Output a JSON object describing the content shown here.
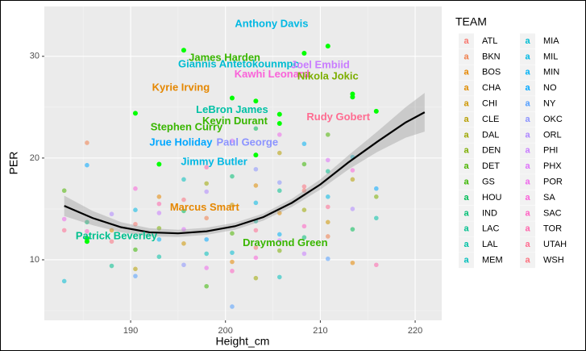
{
  "chart_data": {
    "type": "scatter",
    "x_label": "Height_cm",
    "y_label": "PER",
    "legend_title": "TEAM",
    "key_glyph": "a",
    "xlim": [
      180.9,
      222.8
    ],
    "ylim": [
      4.05,
      34.9
    ],
    "xticks": [
      190,
      200,
      210,
      220
    ],
    "yticks": [
      10,
      20,
      30
    ],
    "xticks_minor": [
      185,
      195,
      205,
      215
    ],
    "yticks_minor": [
      5,
      15,
      25
    ],
    "grid": true,
    "series": [
      {
        "name": "ATL",
        "color": "#F8766D",
        "x": [
          190.5,
          203.2,
          208.3
        ],
        "values": [
          13.5,
          11.2,
          16.8
        ]
      },
      {
        "name": "BKN",
        "color": "#F07E4A",
        "x": [
          185.4,
          198,
          210.8
        ],
        "values": [
          21.5,
          14.1,
          12.3
        ]
      },
      {
        "name": "BOS",
        "color": "#E58700",
        "x": [
          193,
          200.7,
          213.4
        ],
        "values": [
          16.2,
          9.8,
          9.7
        ]
      },
      {
        "name": "CHA",
        "color": "#DE8C00",
        "x": [
          188,
          203.2,
          205.7
        ],
        "values": [
          12.9,
          17.3,
          14.6
        ]
      },
      {
        "name": "CHI",
        "color": "#CD9600",
        "x": [
          195.6,
          200.7,
          210.8
        ],
        "values": [
          11.6,
          15.4,
          13.7
        ]
      },
      {
        "name": "CLE",
        "color": "#B79F00",
        "x": [
          190.5,
          205.7,
          213.4
        ],
        "values": [
          9.1,
          20.5,
          17.9
        ]
      },
      {
        "name": "DAL",
        "color": "#9DA700",
        "x": [
          198,
          203.2,
          208.3
        ],
        "values": [
          17.5,
          8.2,
          14.9
        ]
      },
      {
        "name": "DEN",
        "color": "#7CAE00",
        "x": [
          193,
          205.7,
          215.9
        ],
        "values": [
          13.1,
          10.9,
          16.2
        ]
      },
      {
        "name": "DET",
        "color": "#4CB400",
        "x": [
          183,
          200.7,
          210.8
        ],
        "values": [
          16.8,
          12.6,
          22.3
        ]
      },
      {
        "name": "GS",
        "color": "#39B600",
        "x": [
          190.5,
          198,
          208.3
        ],
        "values": [
          11.0,
          7.4,
          19.4
        ]
      },
      {
        "name": "HOU",
        "color": "#00BC56",
        "x": [
          195.6,
          203.2,
          213.4
        ],
        "values": [
          14.8,
          22.9,
          13.0
        ]
      },
      {
        "name": "IND",
        "color": "#00BF74",
        "x": [
          185.4,
          200.7,
          208.3
        ],
        "values": [
          13.7,
          18.2,
          12.2
        ]
      },
      {
        "name": "LAC",
        "color": "#00C08E",
        "x": [
          188,
          205.7,
          210.8
        ],
        "values": [
          9.4,
          16.8,
          18.7
        ]
      },
      {
        "name": "LAL",
        "color": "#00C1A5",
        "x": [
          193,
          203.2,
          215.9
        ],
        "values": [
          10.3,
          13.8,
          14.1
        ]
      },
      {
        "name": "MEM",
        "color": "#00BFBB",
        "x": [
          195.6,
          198,
          205.7
        ],
        "values": [
          17.9,
          10.6,
          8.3
        ]
      },
      {
        "name": "MIA",
        "color": "#00BCD1",
        "x": [
          183,
          200.7,
          213.4
        ],
        "values": [
          7.9,
          10.7,
          20.1
        ]
      },
      {
        "name": "MIL",
        "color": "#00B8E3",
        "x": [
          190.5,
          203.2,
          210.8
        ],
        "values": [
          14.9,
          15.6,
          16.2
        ]
      },
      {
        "name": "MIN",
        "color": "#00B1F4",
        "x": [
          193,
          205.7,
          208.3
        ],
        "values": [
          12.0,
          12.5,
          21.4
        ]
      },
      {
        "name": "NO",
        "color": "#00A7FF",
        "x": [
          185.4,
          198,
          215.9
        ],
        "values": [
          19.3,
          12.0,
          17.0
        ]
      },
      {
        "name": "NY",
        "color": "#529EFF",
        "x": [
          190.5,
          200.7,
          210.8
        ],
        "values": [
          8.4,
          5.4,
          10.1
        ]
      },
      {
        "name": "OKC",
        "color": "#8B93FF",
        "x": [
          195.6,
          203.2,
          205.7
        ],
        "values": [
          9.5,
          18.9,
          17.6
        ]
      },
      {
        "name": "ORL",
        "color": "#AE87FF",
        "x": [
          188,
          198,
          213.4
        ],
        "values": [
          14.5,
          16.7,
          15.0
        ]
      },
      {
        "name": "PHI",
        "color": "#C97CFF",
        "x": [
          193,
          205.7,
          208.3
        ],
        "values": [
          14.6,
          11.9,
          10.6
        ]
      },
      {
        "name": "PHX",
        "color": "#DE71F9",
        "x": [
          195.6,
          200.7,
          210.8
        ],
        "values": [
          13.0,
          21.7,
          19.8
        ]
      },
      {
        "name": "POR",
        "color": "#EE67EB",
        "x": [
          183,
          198,
          205.7
        ],
        "values": [
          14.0,
          9.2,
          22.3
        ]
      },
      {
        "name": "SA",
        "color": "#FA62D9",
        "x": [
          190.5,
          203.2,
          213.4
        ],
        "values": [
          17.0,
          10.2,
          18.8
        ]
      },
      {
        "name": "SAC",
        "color": "#FF61C3",
        "x": [
          185.4,
          200.7,
          208.3
        ],
        "values": [
          12.8,
          8.9,
          13.3
        ]
      },
      {
        "name": "TOR",
        "color": "#FF64AB",
        "x": [
          193,
          198,
          215.9
        ],
        "values": [
          15.5,
          19.1,
          9.5
        ]
      },
      {
        "name": "UTAH",
        "color": "#FF6C91",
        "x": [
          183,
          203.2,
          210.8
        ],
        "values": [
          12.9,
          12.9,
          15.2
        ]
      },
      {
        "name": "WSH",
        "color": "#FC717F",
        "x": [
          188,
          195.6,
          208.3
        ],
        "values": [
          11.8,
          15.9,
          17.2
        ]
      }
    ],
    "highlights": {
      "color": "#00FF00",
      "x": [
        195.6,
        208.3,
        210.8,
        190.5,
        200.7,
        203.2,
        205.7,
        205.7,
        213.4,
        213.4,
        215.9,
        193,
        203.2,
        185.4,
        185.4
      ],
      "values": [
        30.6,
        30.3,
        31.0,
        24.4,
        25.9,
        25.6,
        24.3,
        23.4,
        26.3,
        26.0,
        24.6,
        19.4,
        20.3,
        11.8,
        12.1
      ]
    },
    "smooth": {
      "color": "#000000",
      "x": [
        183,
        186,
        189,
        192,
        195,
        198,
        201,
        204,
        207,
        210,
        213,
        216,
        219,
        221
      ],
      "values": [
        15.3,
        14.1,
        13.2,
        12.7,
        12.6,
        12.8,
        13.3,
        14.2,
        15.6,
        17.4,
        19.6,
        21.6,
        23.5,
        24.5
      ],
      "ymin": [
        14.3,
        13.4,
        12.7,
        12.3,
        12.25,
        12.45,
        12.95,
        13.85,
        15.2,
        16.9,
        18.9,
        20.6,
        22.0,
        22.6
      ],
      "ymax": [
        16.3,
        14.8,
        13.7,
        13.1,
        12.95,
        13.15,
        13.65,
        14.55,
        16.0,
        17.9,
        20.3,
        22.6,
        25.0,
        26.4
      ]
    },
    "annotations": [
      {
        "text": "Anthony Davis",
        "x": 204.86,
        "y": 33.15,
        "color": "#00B8E3"
      },
      {
        "text": "James Harden",
        "x": 199.9,
        "y": 29.8,
        "color": "#39B600"
      },
      {
        "text": "Giannis Antetokounmpo",
        "x": 201.4,
        "y": 29.2,
        "color": "#00BCD1"
      },
      {
        "text": "Joel Embiid",
        "x": 210.0,
        "y": 29.1,
        "color": "#C97CFF"
      },
      {
        "text": "Kawhi Leonard",
        "x": 204.9,
        "y": 28.2,
        "color": "#FA62D9"
      },
      {
        "text": "Nikola Jokic",
        "x": 210.8,
        "y": 28.0,
        "color": "#7CAE00"
      },
      {
        "text": "Kyrie Irving",
        "x": 195.3,
        "y": 26.9,
        "color": "#E58700"
      },
      {
        "text": "LeBron James",
        "x": 200.7,
        "y": 24.7,
        "color": "#00C1A5"
      },
      {
        "text": "Kevin Durant",
        "x": 201.0,
        "y": 23.6,
        "color": "#39B600"
      },
      {
        "text": "Rudy Gobert",
        "x": 211.9,
        "y": 24.0,
        "color": "#FF6C91"
      },
      {
        "text": "Stephen Curry",
        "x": 195.9,
        "y": 23.0,
        "color": "#39B600"
      },
      {
        "text": "Jrue Holiday",
        "x": 195.3,
        "y": 21.5,
        "color": "#00A7FF"
      },
      {
        "text": "Paul George",
        "x": 202.3,
        "y": 21.5,
        "color": "#8B93FF"
      },
      {
        "text": "Jimmy Butler",
        "x": 198.8,
        "y": 19.6,
        "color": "#00B8E3"
      },
      {
        "text": "Marcus Smart",
        "x": 197.8,
        "y": 15.1,
        "color": "#E58700"
      },
      {
        "text": "Patrick Beverley",
        "x": 188.5,
        "y": 12.3,
        "color": "#00C08E"
      },
      {
        "text": "Draymond Green",
        "x": 206.3,
        "y": 11.6,
        "color": "#39B600"
      }
    ]
  }
}
